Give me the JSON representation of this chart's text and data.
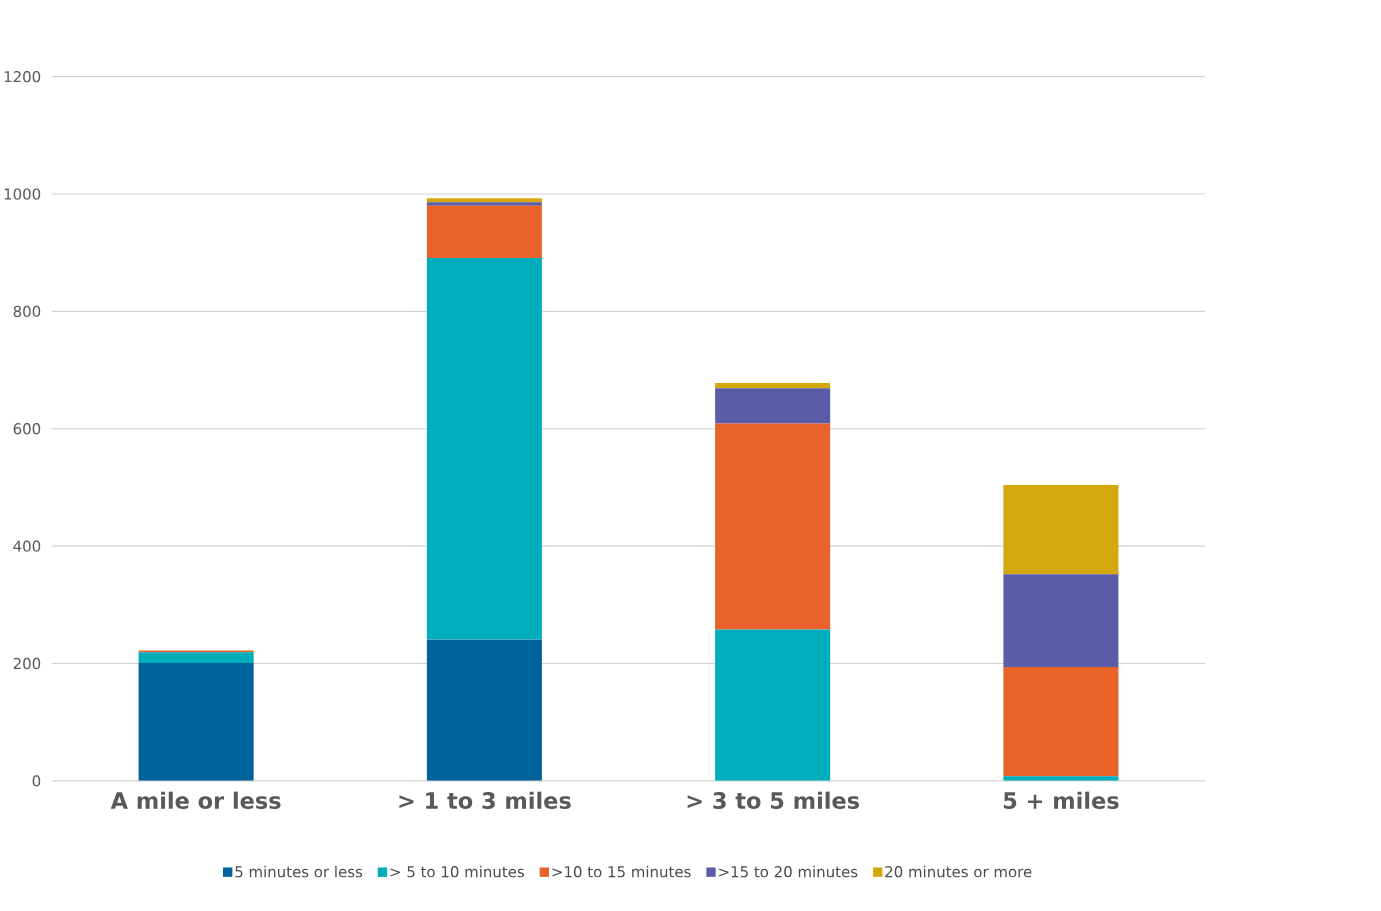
{
  "chart_data": {
    "type": "bar",
    "stacked": true,
    "categories": [
      "A mile or less",
      "> 1 to 3 miles",
      "> 3 to 5 miles",
      "5 + miles"
    ],
    "series": [
      {
        "name": "5 minutes or less",
        "color": "#00629b",
        "values": [
          201,
          241,
          0,
          0
        ]
      },
      {
        "name": "> 5 to 10 minutes",
        "color": "#00adbc",
        "values": [
          18,
          650,
          258,
          8
        ]
      },
      {
        "name": ">10 to 15 minutes",
        "color": "#e8622a",
        "values": [
          3,
          89,
          351,
          186
        ]
      },
      {
        "name": ">15 to 20 minutes",
        "color": "#5a5ca8",
        "values": [
          0,
          6,
          60,
          158
        ]
      },
      {
        "name": "20 minutes or more",
        "color": "#d4a80c",
        "values": [
          0,
          7,
          9,
          152
        ]
      }
    ],
    "ylim": [
      0,
      1200
    ],
    "yticks": [
      0,
      200,
      400,
      600,
      800,
      1000,
      1200
    ],
    "grid": "y",
    "legend": "bottom"
  }
}
